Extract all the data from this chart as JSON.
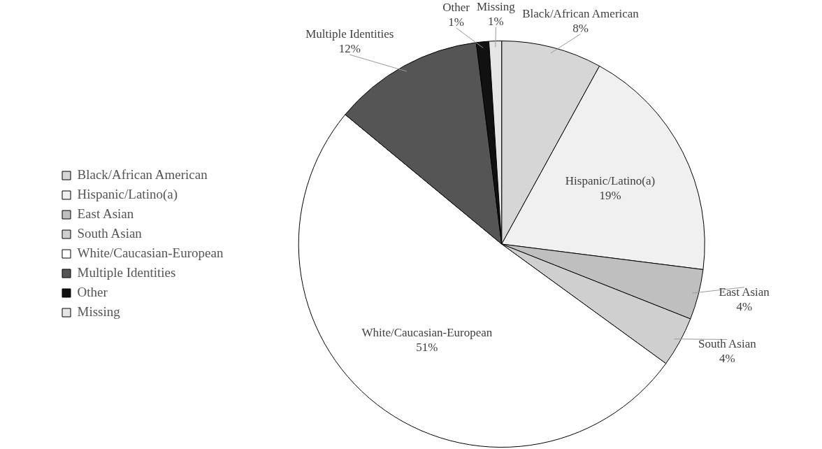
{
  "chart_data": {
    "type": "pie",
    "categories": [
      "Black/African American",
      "Hispanic/Latino(a)",
      "East Asian",
      "South Asian",
      "White/Caucasian-European",
      "Multiple Identities",
      "Other",
      "Missing"
    ],
    "values": [
      8,
      19,
      4,
      4,
      51,
      12,
      1,
      1
    ],
    "colors": [
      "#d6d6d6",
      "#f0f0f0",
      "#bfbfbf",
      "#cfcfcf",
      "#ffffff",
      "#555555",
      "#111111",
      "#e6e6e6"
    ],
    "value_labels": [
      "8%",
      "19%",
      "4%",
      "4%",
      "51%",
      "12%",
      "1%",
      "1%"
    ],
    "legend": "left"
  }
}
